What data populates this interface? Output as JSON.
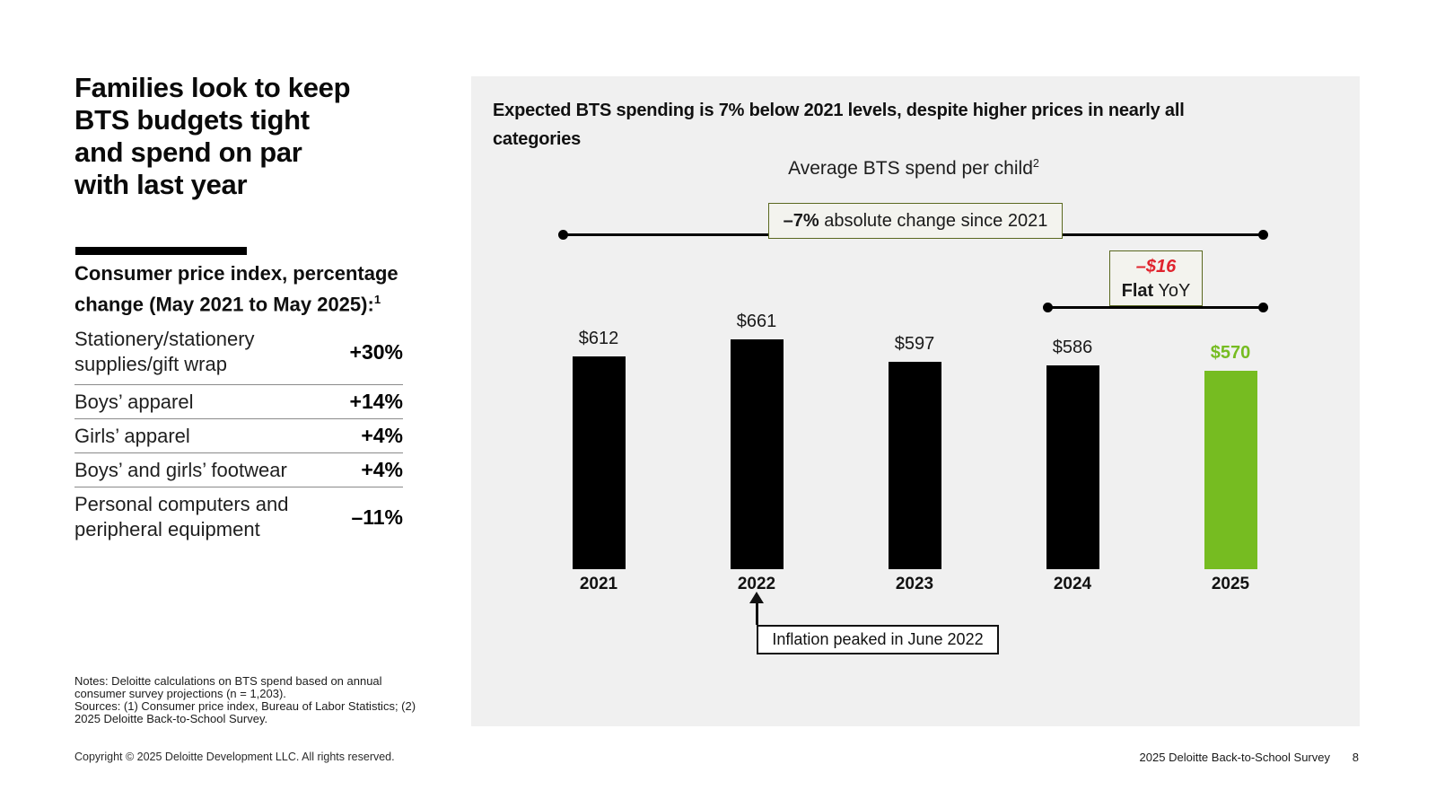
{
  "slide": {
    "title_lines": [
      "Families look to keep",
      "BTS budgets tight",
      "and spend on par",
      "with last year"
    ],
    "cpi": {
      "heading_lines": [
        "Consumer price index, percentage",
        "change (May 2021 to May 2025):"
      ],
      "heading_superscript": "1",
      "rows": [
        {
          "label_lines": [
            "Stationery/stationery",
            "supplies/gift wrap"
          ],
          "value": "+30%"
        },
        {
          "label_lines": [
            "Boys’ apparel"
          ],
          "value": "+14%"
        },
        {
          "label_lines": [
            "Girls’ apparel"
          ],
          "value": "+4%"
        },
        {
          "label_lines": [
            "Boys’ and girls’ footwear"
          ],
          "value": "+4%"
        },
        {
          "label_lines": [
            "Personal computers and",
            "peripheral equipment"
          ],
          "value": "–11%"
        }
      ]
    },
    "notes_lines": [
      "Notes: Deloitte calculations on BTS spend based on annual",
      "consumer survey projections (n = 1,203).",
      "Sources: (1) Consumer price index, Bureau of Labor Statistics; (2)",
      "2025 Deloitte Back-to-School Survey."
    ],
    "footer": {
      "copyright": "Copyright © 2025 Deloitte Development LLC. All rights reserved.",
      "survey_name": "2025 Deloitte Back-to-School Survey",
      "page_number": "8"
    }
  },
  "chart_panel": {
    "heading_lines": [
      "Expected BTS spending is 7% below 2021 levels, despite higher prices in nearly all",
      "categories"
    ],
    "subtitle": "Average BTS spend per child",
    "subtitle_superscript": "2",
    "annotation_total": {
      "bold": "–7%",
      "rest": " absolute change since 2021"
    },
    "annotation_yoy": {
      "delta": "–$16",
      "flat_bold": "Flat",
      "flat_rest": " YoY"
    },
    "annotation_inflation": "Inflation peaked in June 2022"
  },
  "chart_data": {
    "type": "bar",
    "title": "Average BTS spend per child",
    "xlabel": "",
    "ylabel": "",
    "categories": [
      "2021",
      "2022",
      "2023",
      "2024",
      "2025"
    ],
    "values": [
      612,
      661,
      597,
      586,
      570
    ],
    "value_labels": [
      "$612",
      "$661",
      "$597",
      "$586",
      "$570"
    ],
    "bar_colors": [
      "#000000",
      "#000000",
      "#000000",
      "#000000",
      "#76bc21"
    ],
    "value_label_colors": [
      "#1a1a1a",
      "#1a1a1a",
      "#1a1a1a",
      "#1a1a1a",
      "#76bc21"
    ],
    "value_label_bold": [
      false,
      false,
      false,
      false,
      true
    ],
    "ylim": [
      0,
      700
    ],
    "grid": false,
    "legend": "none",
    "annotations": [
      {
        "text": "–7% absolute change since 2021",
        "from": "2021",
        "to": "2025"
      },
      {
        "text": "–$16 Flat YoY",
        "from": "2024",
        "to": "2025"
      },
      {
        "text": "Inflation peaked in June 2022",
        "target": "2022"
      }
    ]
  },
  "colors": {
    "panel_bg": "#f0f0f0",
    "bar_black": "#000000",
    "accent_green": "#76bc21",
    "annotation_red": "#e0232d",
    "annotation_box_border": "#5a681f",
    "table_separator": "#8a8a8a"
  }
}
